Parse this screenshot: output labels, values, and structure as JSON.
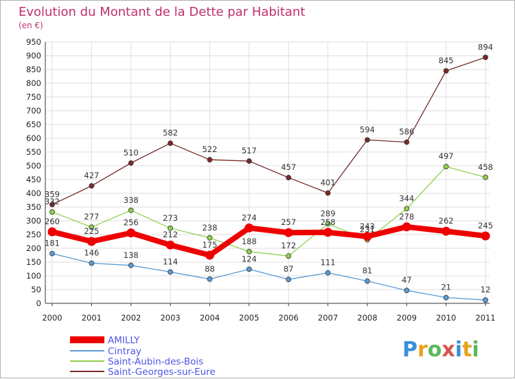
{
  "chart_data": {
    "type": "line",
    "title": "Evolution du Montant de la Dette par Habitant",
    "subtitle": "(en €)",
    "categories": [
      "2000",
      "2001",
      "2002",
      "2003",
      "2004",
      "2005",
      "2006",
      "2007",
      "2008",
      "2009",
      "2010",
      "2011"
    ],
    "ylim": [
      0,
      950
    ],
    "yticks": [
      0,
      50,
      100,
      150,
      200,
      250,
      300,
      350,
      400,
      450,
      500,
      550,
      600,
      650,
      700,
      750,
      800,
      850,
      900,
      950
    ],
    "grid": true,
    "legend_position": "bottom-left",
    "series": [
      {
        "name": "AMILLY",
        "color": "#ee0000",
        "values": [
          260,
          225,
          256,
          212,
          175,
          274,
          257,
          258,
          243,
          278,
          262,
          245
        ]
      },
      {
        "name": "Cintray",
        "color": "#5b9bd5",
        "values": [
          181,
          146,
          138,
          114,
          88,
          124,
          87,
          111,
          81,
          47,
          21,
          12
        ]
      },
      {
        "name": "Saint-Aubin-des-Bois",
        "color": "#8fd14f",
        "values": [
          332,
          277,
          338,
          273,
          238,
          188,
          172,
          289,
          231,
          344,
          497,
          458
        ]
      },
      {
        "name": "Saint-Georges-sur-Eure",
        "color": "#7a2a2a",
        "values": [
          359,
          427,
          510,
          582,
          522,
          517,
          457,
          401,
          594,
          586,
          845,
          894
        ]
      }
    ]
  },
  "branding": {
    "logo_text": "Proxiti"
  }
}
